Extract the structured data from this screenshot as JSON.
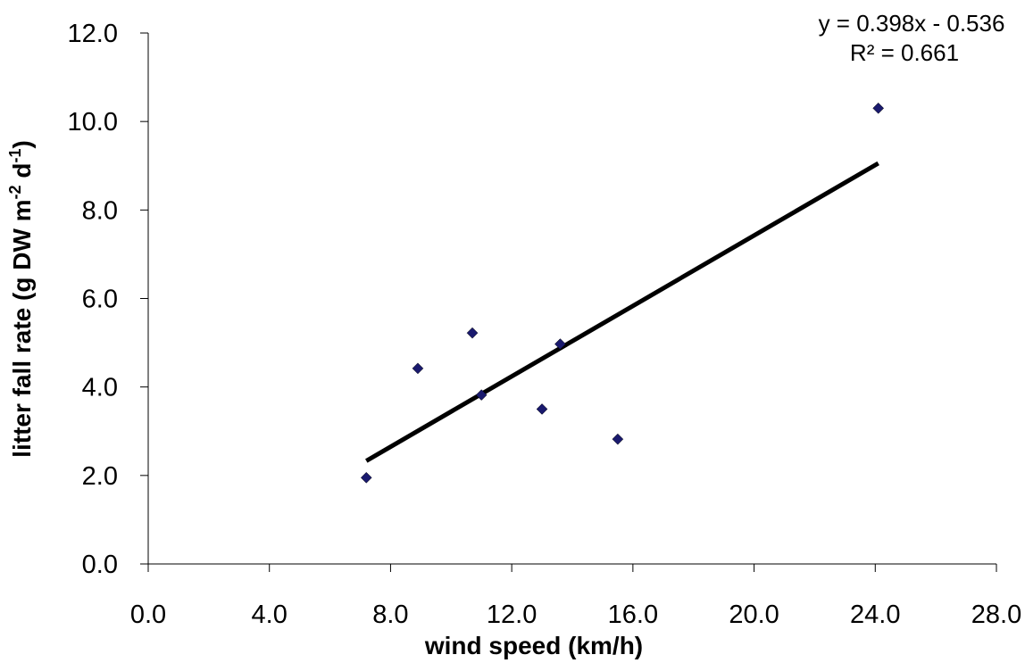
{
  "chart_data": {
    "type": "scatter",
    "title": "",
    "xlabel": "wind speed (km/h)",
    "ylabel_parts": {
      "main": "litter fall rate (g DW m",
      "sup1": "-2",
      "mid": " d",
      "sup2": "-1",
      "end": ")"
    },
    "xlim": [
      0,
      28
    ],
    "ylim": [
      0,
      12
    ],
    "x_ticks": [
      "0.0",
      "4.0",
      "8.0",
      "12.0",
      "16.0",
      "20.0",
      "24.0",
      "28.0"
    ],
    "y_ticks": [
      "0.0",
      "2.0",
      "4.0",
      "6.0",
      "8.0",
      "10.0",
      "12.0"
    ],
    "series": [
      {
        "points": [
          {
            "x": 7.2,
            "y": 1.95
          },
          {
            "x": 8.9,
            "y": 4.42
          },
          {
            "x": 10.7,
            "y": 5.22
          },
          {
            "x": 11.0,
            "y": 3.82
          },
          {
            "x": 13.0,
            "y": 3.5
          },
          {
            "x": 13.6,
            "y": 4.97
          },
          {
            "x": 15.5,
            "y": 2.82
          },
          {
            "x": 24.1,
            "y": 10.3
          }
        ],
        "marker": "diamond",
        "color": "#1a1a6e"
      }
    ],
    "trendline": {
      "type": "linear",
      "slope": 0.398,
      "intercept": -0.536,
      "x_range": [
        7.2,
        24.1
      ],
      "color": "#000000",
      "equation_text": "y = 0.398x - 0.536",
      "r2_text": "R² = 0.661"
    },
    "grid": false,
    "legend": "none"
  }
}
